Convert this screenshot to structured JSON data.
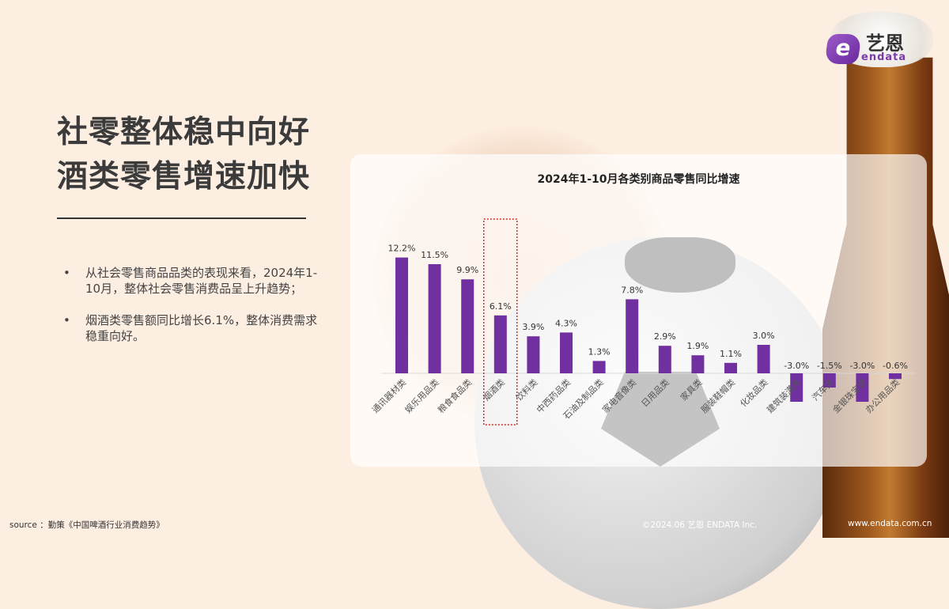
{
  "logo": {
    "cn": "艺恩",
    "en": "endata"
  },
  "title": [
    "社零整体稳中向好",
    "酒类零售增速加快"
  ],
  "bullets": [
    "从社会零售商品品类的表现来看，2024年1-10月，整体社会零售消费品呈上升趋势；",
    "烟酒类零售额同比增长6.1%，整体消费需求稳重向好。"
  ],
  "footer": {
    "source": "source ：勤策《中国啤酒行业消费趋势》",
    "copyright": "©2024.06  艺恩 ENDATA Inc.",
    "website": "www.endata.com.cn"
  },
  "colors": {
    "bar": "#7030a0",
    "highlight": "#c00000",
    "background": "#fdeee2"
  },
  "chart_data": {
    "type": "bar",
    "title": "2024年1-10月各类别商品零售同比增速",
    "categories": [
      "通讯器材类",
      "娱乐用品类",
      "粮食食品类",
      "烟酒类",
      "饮料类",
      "中西药品类",
      "石油及制品类",
      "家电音像类",
      "日用品类",
      "家具类",
      "服装鞋帽类",
      "化妆品类",
      "建筑装潢类",
      "汽车类",
      "金银珠宝类",
      "办公用品类"
    ],
    "values": [
      12.2,
      11.5,
      9.9,
      6.1,
      3.9,
      4.3,
      1.3,
      7.8,
      2.9,
      1.9,
      1.1,
      3.0,
      -3.0,
      -1.5,
      -3.0,
      -0.6
    ],
    "data_labels": [
      "12.2%",
      "11.5%",
      "9.9%",
      "6.1%",
      "3.9%",
      "4.3%",
      "1.3%",
      "7.8%",
      "2.9%",
      "1.9%",
      "1.1%",
      "3.0%",
      "-3.0%",
      "-1.5%",
      "-3.0%",
      "-0.6%"
    ],
    "unit": "%",
    "highlighted_category": "烟酒类",
    "grid": false,
    "legend": "none"
  }
}
